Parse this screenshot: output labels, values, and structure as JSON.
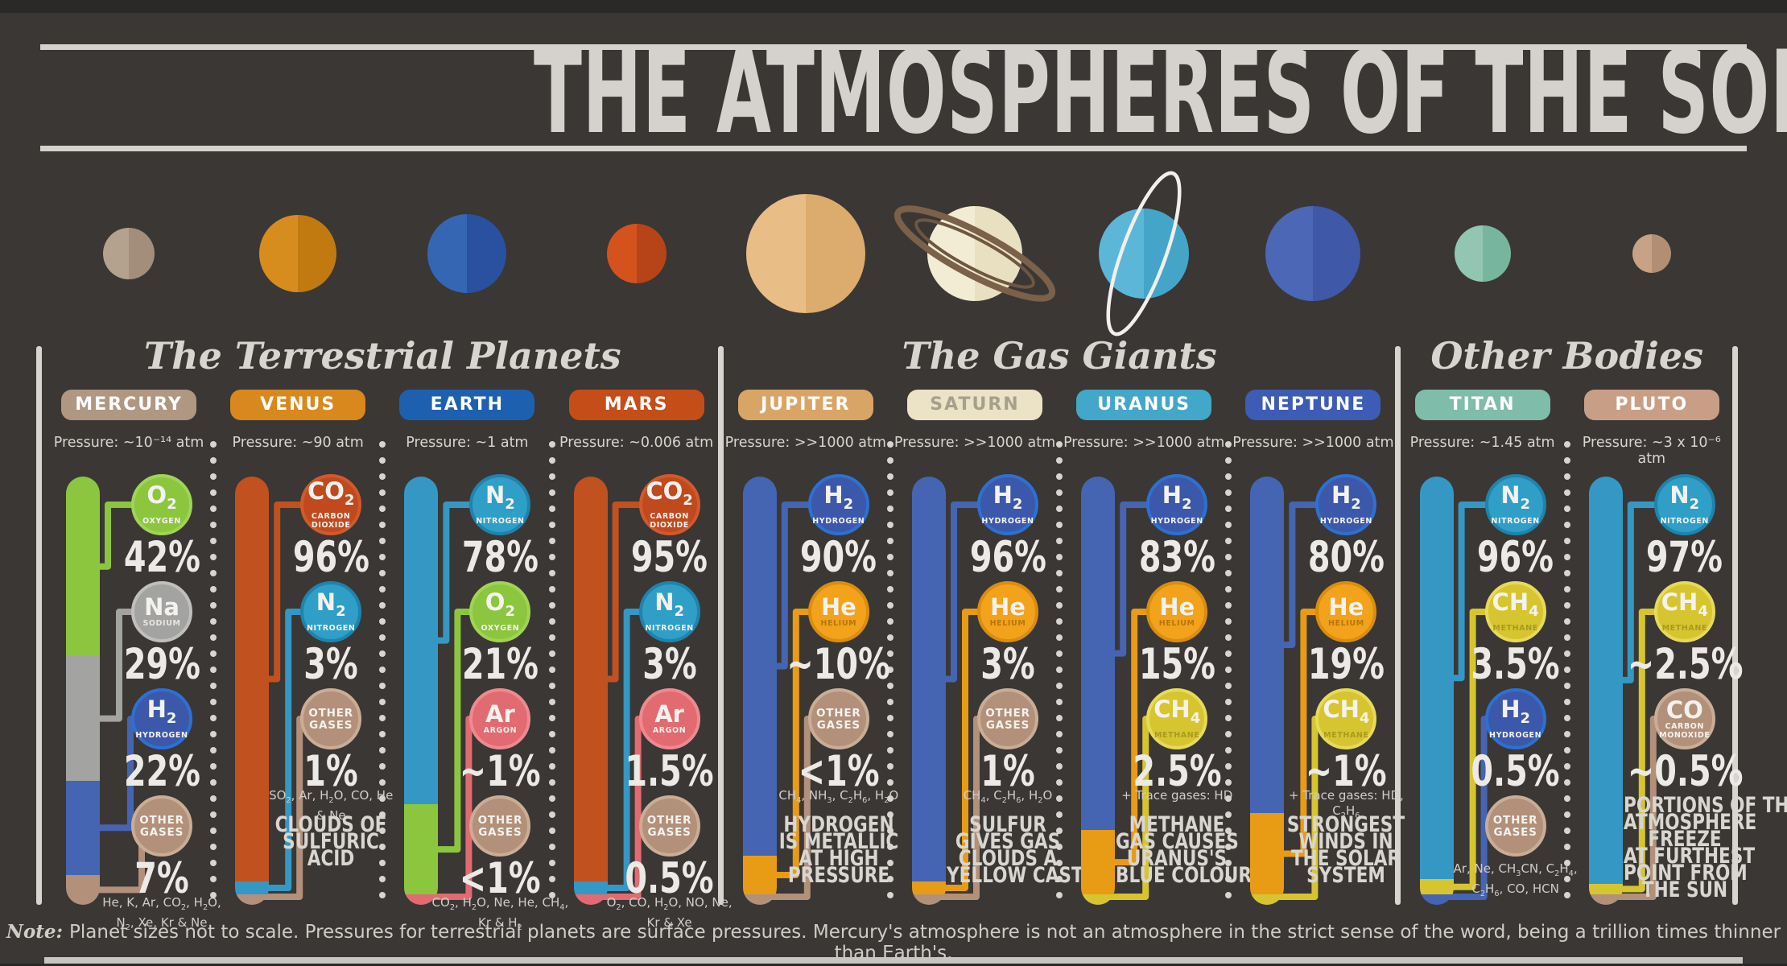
{
  "title": "THE ATMOSPHERES OF THE SOLAR SYSTEM",
  "bottom_note": {
    "label": "Note:",
    "text": "Planet sizes not to scale. Pressures for terrestrial planets are surface pressures. Mercury's atmosphere is not an atmosphere in the strict sense of the word, being a trillion times thinner than Earth's."
  },
  "gas_styles": {
    "oxygen": {
      "fill": "#8cc63e",
      "edge": "#a0d455",
      "bar": "#8cc63e",
      "label_color": "#f4f2ee"
    },
    "sodium": {
      "fill": "#a3a3a1",
      "edge": "#c0bfbd",
      "bar": "#a3a3a1",
      "label_color": "#e8e6e2"
    },
    "hydrogen": {
      "fill": "#3c58aa",
      "edge": "#2e70d2",
      "bar": "#4565b2",
      "label_color": "#f4f2ee"
    },
    "other": {
      "fill": "#b2907a",
      "edge": "#c9ad96",
      "bar": "#b2907a",
      "label_color": "#f4f2ee"
    },
    "co2": {
      "fill": "#c04a1e",
      "edge": "#d2592b",
      "bar": "#c1511f",
      "label_color": "#f4f2ee"
    },
    "nitrogen": {
      "fill": "#2f9fc7",
      "edge": "#1e84ad",
      "bar": "#3598c4",
      "label_color": "#f4f2ee"
    },
    "argon": {
      "fill": "#e16b70",
      "edge": "#ed8a90",
      "bar": "#e16b70",
      "label_color": "#f4f2ee"
    },
    "helium": {
      "fill": "#f3a21c",
      "edge": "#da8e0b",
      "bar": "#e89b14",
      "label_color": "#b5770a"
    },
    "methane": {
      "fill": "#d7c52f",
      "edge": "#e7da5a",
      "bar": "#d7c52f",
      "label_color": "#a89a1f"
    },
    "co": {
      "fill": "#b2907a",
      "edge": "#c9ad96",
      "bar": "#b2907a",
      "label_color": "#f4f2ee"
    }
  },
  "sections": [
    {
      "title": "The Terrestrial Planets",
      "planets": [
        {
          "name": "MERCURY",
          "badge": {
            "bg": "#b09781",
            "fg": "#ffffff"
          },
          "pressure": "Pressure: ~10⁻¹⁴ atm",
          "icon": {
            "d": 64,
            "left": "#b4a18e",
            "right": "#a28e7a",
            "ring": null
          },
          "bar": [
            {
              "gas": "oxygen",
              "pct": 42
            },
            {
              "gas": "sodium",
              "pct": 29
            },
            {
              "gas": "hydrogen",
              "pct": 22
            },
            {
              "gas": "other",
              "pct": 7
            }
          ],
          "gases": [
            {
              "gas": "oxygen",
              "formula": "O2",
              "label": "OXYGEN",
              "value": "42%"
            },
            {
              "gas": "sodium",
              "formula": "Na",
              "label": "SODIUM",
              "value": "29%"
            },
            {
              "gas": "hydrogen",
              "formula": "H2",
              "label": "HYDROGEN",
              "value": "22%"
            },
            {
              "gas": "other",
              "formula": null,
              "label": "OTHER GASES",
              "value": "7%",
              "footnote": "He, K, Ar, CO2, H2O, N2, Xe, Kr & Ne"
            }
          ],
          "fact": null
        },
        {
          "name": "VENUS",
          "badge": {
            "bg": "#d8881c",
            "fg": "#ffffff"
          },
          "pressure": "Pressure: ~90 atm",
          "icon": {
            "d": 96,
            "left": "#d78c1e",
            "right": "#c17a10",
            "ring": null
          },
          "bar": [
            {
              "gas": "co2",
              "pct": 96
            },
            {
              "gas": "nitrogen",
              "pct": 3
            },
            {
              "gas": "other",
              "pct": 1
            }
          ],
          "gases": [
            {
              "gas": "co2",
              "formula": "CO2",
              "label": "CARBON DIOXIDE",
              "value": "96%"
            },
            {
              "gas": "nitrogen",
              "formula": "N2",
              "label": "NITROGEN",
              "value": "3%"
            },
            {
              "gas": "other",
              "formula": null,
              "label": "OTHER GASES",
              "value": "1%",
              "footnote": "SO2, Ar, H2O, CO, He & Ne"
            }
          ],
          "fact": [
            "CLOUDS OF",
            "SULFURIC",
            "ACID"
          ]
        },
        {
          "name": "EARTH",
          "badge": {
            "bg": "#1e60b0",
            "fg": "#ffffff"
          },
          "pressure": "Pressure: ~1 atm",
          "icon": {
            "d": 98,
            "left": "#3566b4",
            "right": "#29519f",
            "ring": null
          },
          "bar": [
            {
              "gas": "nitrogen",
              "pct": 78
            },
            {
              "gas": "oxygen",
              "pct": 21
            },
            {
              "gas": "argon",
              "pct": 1
            }
          ],
          "gases": [
            {
              "gas": "nitrogen",
              "formula": "N2",
              "label": "NITROGEN",
              "value": "78%"
            },
            {
              "gas": "oxygen",
              "formula": "O2",
              "label": "OXYGEN",
              "value": "21%"
            },
            {
              "gas": "argon",
              "formula": "Ar",
              "label": "ARGON",
              "value": "~1%"
            },
            {
              "gas": "other",
              "formula": null,
              "label": "OTHER GASES",
              "value": "<1%",
              "footnote": "CO2, H2O, Ne, He, CH4, Kr & H2"
            }
          ],
          "fact": null
        },
        {
          "name": "MARS",
          "badge": {
            "bg": "#c54e18",
            "fg": "#ffffff"
          },
          "pressure": "Pressure: ~0.006 atm",
          "icon": {
            "d": 74,
            "left": "#d4531d",
            "right": "#b64418",
            "ring": null
          },
          "bar": [
            {
              "gas": "co2",
              "pct": 95
            },
            {
              "gas": "nitrogen",
              "pct": 3
            },
            {
              "gas": "argon",
              "pct": 2
            }
          ],
          "gases": [
            {
              "gas": "co2",
              "formula": "CO2",
              "label": "CARBON DIOXIDE",
              "value": "95%"
            },
            {
              "gas": "nitrogen",
              "formula": "N2",
              "label": "NITROGEN",
              "value": "3%"
            },
            {
              "gas": "argon",
              "formula": "Ar",
              "label": "ARGON",
              "value": "1.5%"
            },
            {
              "gas": "other",
              "formula": null,
              "label": "OTHER GASES",
              "value": "0.5%",
              "footnote": "O2, CO, H2O, NO, Ne, Kr & Xe"
            }
          ],
          "fact": null
        }
      ]
    },
    {
      "title": "The Gas Giants",
      "planets": [
        {
          "name": "JUPITER",
          "badge": {
            "bg": "#d9a567",
            "fg": "#ffffff"
          },
          "pressure": "Pressure: >>1000 atm",
          "icon": {
            "d": 148,
            "left": "#e9bd86",
            "right": "#dcab6e",
            "ring": null
          },
          "bar": [
            {
              "gas": "hydrogen",
              "pct": 90
            },
            {
              "gas": "helium",
              "pct": 9
            },
            {
              "gas": "other",
              "pct": 1
            }
          ],
          "gases": [
            {
              "gas": "hydrogen",
              "formula": "H2",
              "label": "HYDROGEN",
              "value": "90%"
            },
            {
              "gas": "helium",
              "formula": "He",
              "label": "HELIUM",
              "value": "~10%"
            },
            {
              "gas": "other",
              "formula": null,
              "label": "OTHER GASES",
              "value": "<1%",
              "footnote": "CH4, NH3, C2H6, H2O"
            }
          ],
          "fact": [
            "HYDROGEN",
            "IS METALLIC",
            "AT HIGH",
            "PRESSURE"
          ]
        },
        {
          "name": "SATURN",
          "badge": {
            "bg": "#ece2c6",
            "fg": "#a5a08c"
          },
          "pressure": "Pressure: >>1000 atm",
          "icon": {
            "d": 118,
            "left": "#f2ecd4",
            "right": "#e9dfc1",
            "ring": "saturn"
          },
          "bar": [
            {
              "gas": "hydrogen",
              "pct": 96
            },
            {
              "gas": "helium",
              "pct": 3
            },
            {
              "gas": "other",
              "pct": 1
            }
          ],
          "gases": [
            {
              "gas": "hydrogen",
              "formula": "H2",
              "label": "HYDROGEN",
              "value": "96%"
            },
            {
              "gas": "helium",
              "formula": "He",
              "label": "HELIUM",
              "value": "3%"
            },
            {
              "gas": "other",
              "formula": null,
              "label": "OTHER GASES",
              "value": "1%",
              "footnote": "CH4, C2H6, H2O"
            }
          ],
          "fact": [
            "SULFUR",
            "GIVES GAS",
            "CLOUDS A",
            "YELLOW CAST"
          ]
        },
        {
          "name": "URANUS",
          "badge": {
            "bg": "#42a7c9",
            "fg": "#ffffff"
          },
          "pressure": "Pressure: >>1000 atm",
          "icon": {
            "d": 112,
            "left": "#5cb6d8",
            "right": "#45a5c9",
            "ring": "uranus"
          },
          "bar": [
            {
              "gas": "hydrogen",
              "pct": 83
            },
            {
              "gas": "helium",
              "pct": 15
            },
            {
              "gas": "methane",
              "pct": 2
            }
          ],
          "gases": [
            {
              "gas": "hydrogen",
              "formula": "H2",
              "label": "HYDROGEN",
              "value": "83%"
            },
            {
              "gas": "helium",
              "formula": "He",
              "label": "HELIUM",
              "value": "15%"
            },
            {
              "gas": "methane",
              "formula": "CH4",
              "label": "METHANE",
              "value": "2.5%",
              "footnote": "+ Trace gases: HD"
            }
          ],
          "fact": [
            "METHANE",
            "GAS CAUSES",
            "URANUS'S",
            "BLUE COLOUR"
          ]
        },
        {
          "name": "NEPTUNE",
          "badge": {
            "bg": "#3d5cb5",
            "fg": "#ffffff"
          },
          "pressure": "Pressure: >>1000 atm",
          "icon": {
            "d": 118,
            "left": "#4b67b5",
            "right": "#3f58a8",
            "ring": null
          },
          "bar": [
            {
              "gas": "hydrogen",
              "pct": 80
            },
            {
              "gas": "helium",
              "pct": 19
            },
            {
              "gas": "methane",
              "pct": 1
            }
          ],
          "gases": [
            {
              "gas": "hydrogen",
              "formula": "H2",
              "label": "HYDROGEN",
              "value": "80%"
            },
            {
              "gas": "helium",
              "formula": "He",
              "label": "HELIUM",
              "value": "19%"
            },
            {
              "gas": "methane",
              "formula": "CH4",
              "label": "METHANE",
              "value": "~1%",
              "footnote": "+ Trace gases: HD, C2H6"
            }
          ],
          "fact": [
            "STRONGEST",
            "WINDS IN",
            "THE SOLAR",
            "SYSTEM"
          ]
        }
      ]
    },
    {
      "title": "Other Bodies",
      "planets": [
        {
          "name": "TITAN",
          "badge": {
            "bg": "#80bcaa",
            "fg": "#ffffff"
          },
          "pressure": "Pressure: ~1.45 atm",
          "icon": {
            "d": 70,
            "left": "#92c6b2",
            "right": "#78b59f",
            "ring": null
          },
          "bar": [
            {
              "gas": "nitrogen",
              "pct": 96
            },
            {
              "gas": "methane",
              "pct": 3.5
            },
            {
              "gas": "hydrogen",
              "pct": 0.5
            }
          ],
          "gases": [
            {
              "gas": "nitrogen",
              "formula": "N2",
              "label": "NITROGEN",
              "value": "96%"
            },
            {
              "gas": "methane",
              "formula": "CH4",
              "label": "METHANE",
              "value": "3.5%"
            },
            {
              "gas": "hydrogen",
              "formula": "H2",
              "label": "HYDROGEN",
              "value": "0.5%"
            },
            {
              "gas": "other",
              "formula": null,
              "label": "OTHER GASES",
              "value": "",
              "footnote": "Ar, Ne, CH3CN, C2H4, C2H6, CO, HCN"
            }
          ],
          "fact": null
        },
        {
          "name": "PLUTO",
          "badge": {
            "bg": "#c89f86",
            "fg": "#ffffff"
          },
          "pressure": "Pressure: ~3 x 10⁻⁶ atm",
          "icon": {
            "d": 48,
            "left": "#c7a287",
            "right": "#b28e74",
            "ring": null
          },
          "bar": [
            {
              "gas": "nitrogen",
              "pct": 97
            },
            {
              "gas": "methane",
              "pct": 2.5
            },
            {
              "gas": "co",
              "pct": 0.5
            }
          ],
          "gases": [
            {
              "gas": "nitrogen",
              "formula": "N2",
              "label": "NITROGEN",
              "value": "97%"
            },
            {
              "gas": "methane",
              "formula": "CH4",
              "label": "METHANE",
              "value": "~2.5%"
            },
            {
              "gas": "co",
              "formula": "CO",
              "label": "CARBON MONOXIDE",
              "value": "~0.5%"
            }
          ],
          "fact": [
            "PORTIONS OF THE",
            "ATMOSPHERE",
            "FREEZE",
            "AT FURTHEST",
            "POINT FROM",
            "THE SUN"
          ]
        }
      ]
    }
  ],
  "chart_data": {
    "type": "bar",
    "subtype": "stacked-100pct-composition",
    "title": "THE ATMOSPHERES OF THE SOLAR SYSTEM",
    "categories": [
      "MERCURY",
      "VENUS",
      "EARTH",
      "MARS",
      "JUPITER",
      "SATURN",
      "URANUS",
      "NEPTUNE",
      "TITAN",
      "PLUTO"
    ],
    "pressures": [
      "~10⁻¹⁴ atm",
      "~90 atm",
      "~1 atm",
      "~0.006 atm",
      ">>1000 atm",
      ">>1000 atm",
      ">>1000 atm",
      ">>1000 atm",
      "~1.45 atm",
      "~3 x 10⁻⁶ atm"
    ],
    "composition": {
      "MERCURY": [
        {
          "gas": "O2",
          "value": 42
        },
        {
          "gas": "Na",
          "value": 29
        },
        {
          "gas": "H2",
          "value": 22
        },
        {
          "gas": "Other",
          "value": 7
        }
      ],
      "VENUS": [
        {
          "gas": "CO2",
          "value": 96
        },
        {
          "gas": "N2",
          "value": 3
        },
        {
          "gas": "Other",
          "value": 1
        }
      ],
      "EARTH": [
        {
          "gas": "N2",
          "value": 78
        },
        {
          "gas": "O2",
          "value": 21
        },
        {
          "gas": "Ar",
          "value": 1
        },
        {
          "gas": "Other",
          "value": 1
        }
      ],
      "MARS": [
        {
          "gas": "CO2",
          "value": 95
        },
        {
          "gas": "N2",
          "value": 3
        },
        {
          "gas": "Ar",
          "value": 1.5
        },
        {
          "gas": "Other",
          "value": 0.5
        }
      ],
      "JUPITER": [
        {
          "gas": "H2",
          "value": 90
        },
        {
          "gas": "He",
          "value": 10
        },
        {
          "gas": "Other",
          "value": 1
        }
      ],
      "SATURN": [
        {
          "gas": "H2",
          "value": 96
        },
        {
          "gas": "He",
          "value": 3
        },
        {
          "gas": "Other",
          "value": 1
        }
      ],
      "URANUS": [
        {
          "gas": "H2",
          "value": 83
        },
        {
          "gas": "He",
          "value": 15
        },
        {
          "gas": "CH4",
          "value": 2.5
        }
      ],
      "NEPTUNE": [
        {
          "gas": "H2",
          "value": 80
        },
        {
          "gas": "He",
          "value": 19
        },
        {
          "gas": "CH4",
          "value": 1
        }
      ],
      "TITAN": [
        {
          "gas": "N2",
          "value": 96
        },
        {
          "gas": "CH4",
          "value": 3.5
        },
        {
          "gas": "H2",
          "value": 0.5
        }
      ],
      "PLUTO": [
        {
          "gas": "N2",
          "value": 97
        },
        {
          "gas": "CH4",
          "value": 2.5
        },
        {
          "gas": "CO",
          "value": 0.5
        }
      ]
    },
    "legend_position": "none",
    "grid": false
  }
}
